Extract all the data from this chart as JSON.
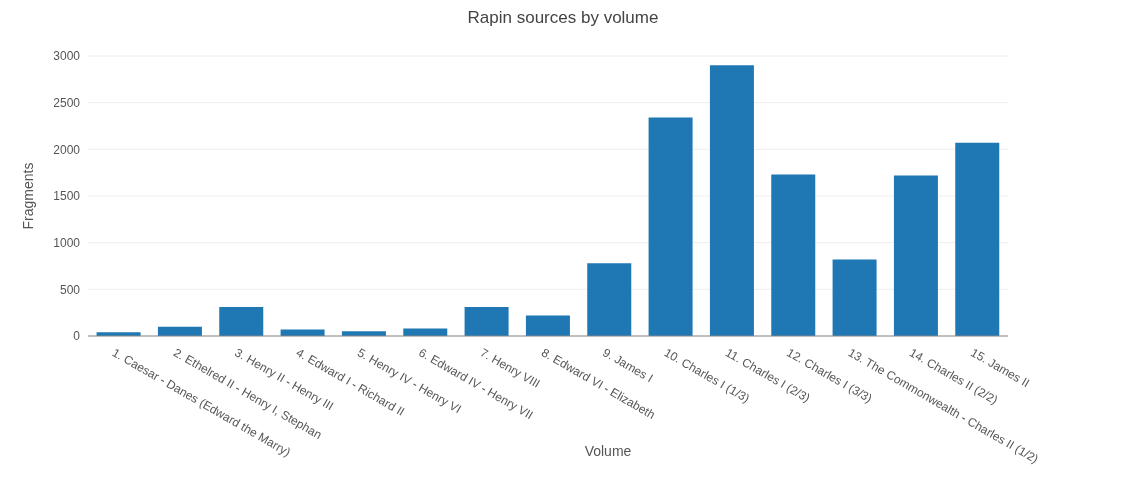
{
  "chart_data": {
    "type": "bar",
    "title": "Rapin sources by volume",
    "xlabel": "Volume",
    "ylabel": "Fragments",
    "categories": [
      "1. Caesar - Danes (Edward the Marry)",
      "2. Ethelred II - Henry I, Stephan",
      "3. Henry II - Henry III",
      "4. Edward I - Richard II",
      "5. Henry IV - Henry VI",
      "6. Edward IV - Henry VII",
      "7. Henry VIII",
      "8. Edward VI - Elizabeth",
      "9. James I",
      "10. Charles I (1/3)",
      "11. Charles I (2/3)",
      "12. Charles I (3/3)",
      "13. The Commonwealth - Charles II (1/2)",
      "14. Charles II (2/2)",
      "15. James II"
    ],
    "values": [
      40,
      100,
      310,
      70,
      50,
      80,
      310,
      220,
      780,
      2340,
      2900,
      1730,
      820,
      1720,
      2070
    ],
    "color": "#1f77b4",
    "ylim": [
      0,
      3000
    ],
    "yticks": [
      0,
      500,
      1000,
      1500,
      2000,
      2500,
      3000
    ],
    "grid": "y",
    "legend": false
  }
}
